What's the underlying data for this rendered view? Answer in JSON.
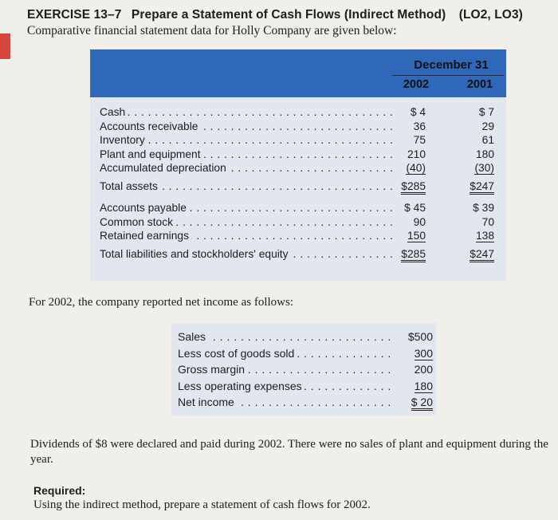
{
  "header": {
    "exercise_code": "EXERCISE 13–7",
    "exercise_title": "Prepare a Statement of Cash Flows (Indirect Method)",
    "learning_objectives": "(LO2, LO3)",
    "subtitle": "Comparative financial statement data for Holly Company are given below:"
  },
  "balance_sheet": {
    "column_group": "December 31",
    "col1": "2002",
    "col2": "2001",
    "assets": [
      {
        "label": "Cash",
        "v2002": "$ 4",
        "v2001": "$ 7"
      },
      {
        "label": "Accounts receivable",
        "v2002": "36",
        "v2001": "29"
      },
      {
        "label": "Inventory",
        "v2002": "75",
        "v2001": "61"
      },
      {
        "label": "Plant and equipment",
        "v2002": "210",
        "v2001": "180"
      },
      {
        "label": "Accumulated depreciation",
        "v2002": "(40)",
        "v2001": "(30)"
      }
    ],
    "total_assets": {
      "label": "Total assets",
      "v2002": "$285",
      "v2001": "$247"
    },
    "liabilities": [
      {
        "label": "Accounts payable",
        "v2002": "$ 45",
        "v2001": "$ 39"
      },
      {
        "label": "Common stock",
        "v2002": "90",
        "v2001": "70"
      },
      {
        "label": "Retained earnings",
        "v2002": "150",
        "v2001": "138"
      }
    ],
    "total_liabilities": {
      "label": "Total liabilities and stockholders' equity",
      "v2002": "$285",
      "v2001": "$247"
    }
  },
  "income_intro": "For 2002, the company reported net income as follows:",
  "income_statement": [
    {
      "label": "Sales",
      "value": "$500"
    },
    {
      "label": "Less cost of goods sold",
      "value": "300"
    },
    {
      "label": "Gross margin",
      "value": "200"
    },
    {
      "label": "Less operating expenses",
      "value": "180"
    },
    {
      "label": "Net income",
      "value": "$ 20"
    }
  ],
  "dividends_note": "Dividends of $8 were declared and paid during 2002. There were no sales of plant and equipment during the year.",
  "required_label": "Required:",
  "required_text": "Using the indirect method, prepare a statement of cash flows for 2002.",
  "colors": {
    "accent_red": "#d8473d",
    "header_blue": "#2f67b9",
    "table_bg": "#e2e7ef"
  }
}
